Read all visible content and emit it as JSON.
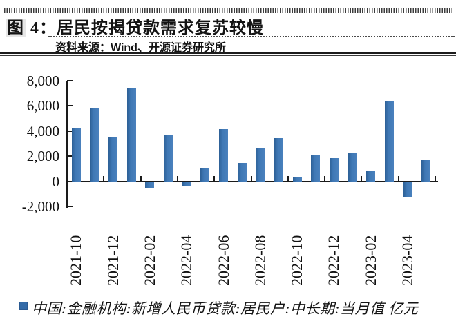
{
  "header": {
    "title_prefix": "图",
    "title_rest": " 4：居民按揭贷款需求复苏较慢",
    "source": "资料来源：Wind、开源证券研究所"
  },
  "chart_data": {
    "type": "bar",
    "title": "居民按揭贷款需求复苏较慢",
    "categories": [
      "2021-10",
      "2021-11",
      "2021-12",
      "2022-01",
      "2022-02",
      "2022-03",
      "2022-04",
      "2022-05",
      "2022-06",
      "2022-07",
      "2022-08",
      "2022-09",
      "2022-10",
      "2022-11",
      "2022-12",
      "2023-01",
      "2023-02",
      "2023-03",
      "2023-04",
      "2023-05"
    ],
    "values": [
      4221,
      5821,
      3558,
      7424,
      -459,
      3735,
      -313,
      1047,
      4167,
      1486,
      2658,
      3456,
      332,
      2103,
      1865,
      2231,
      863,
      6348,
      -1156,
      1684
    ],
    "x_tick_labels": [
      "2021-10",
      "2021-12",
      "2022-02",
      "2022-04",
      "2022-06",
      "2022-08",
      "2022-10",
      "2022-12",
      "2023-02",
      "2023-04"
    ],
    "y_ticks": [
      8000,
      6000,
      4000,
      2000,
      0,
      -2000
    ],
    "y_tick_labels": [
      "8,000",
      "6,000",
      "4,000",
      "2,000",
      "0",
      "-2,000"
    ],
    "ylim": [
      -2000,
      8000
    ],
    "grid": false,
    "legend_position": "bottom",
    "bar_color": "#3b74b0",
    "legend": {
      "label": "中国:金融机构:新增人民币贷款:居民户:中长期:当月值 亿元",
      "marker_color": "#336ba8"
    }
  },
  "colors": {
    "accent": "#3b74b0",
    "text": "#141414"
  }
}
